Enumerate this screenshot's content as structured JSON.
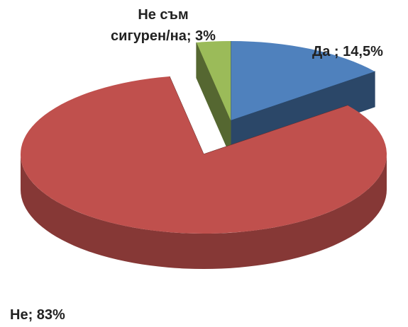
{
  "chart_data": {
    "type": "pie",
    "values": [
      14.5,
      83,
      3
    ],
    "value_labels": [
      "Да ; 14,5%",
      "Не; 83%",
      "Не съм\nсигурен/на; 3%"
    ],
    "colors": [
      "#4f81bd",
      "#c0504d",
      "#9bbb59"
    ]
  }
}
